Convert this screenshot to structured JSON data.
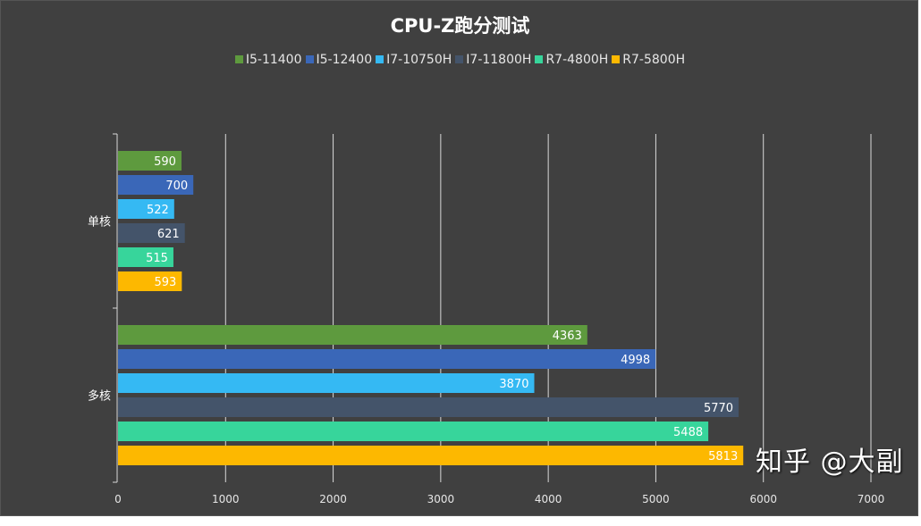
{
  "chart_data": {
    "type": "bar",
    "orientation": "horizontal",
    "title": "CPU-Z跑分测试",
    "categories": [
      "单核",
      "多核"
    ],
    "series": [
      {
        "name": "I5-11400",
        "color": "#5e9a3e",
        "values": [
          590,
          4363
        ]
      },
      {
        "name": "I5-12400",
        "color": "#3a67b8",
        "values": [
          700,
          4998
        ]
      },
      {
        "name": "I7-10750H",
        "color": "#35b9f3",
        "values": [
          522,
          3870
        ]
      },
      {
        "name": "I7-11800H",
        "color": "#44546a",
        "values": [
          621,
          5770
        ]
      },
      {
        "name": "R7-4800H",
        "color": "#37d59b",
        "values": [
          515,
          5488
        ]
      },
      {
        "name": "R7-5800H",
        "color": "#fdb800",
        "values": [
          593,
          5813
        ]
      }
    ],
    "xlim": [
      0,
      7000
    ],
    "xticks": [
      "0",
      "1000",
      "2000",
      "3000",
      "4000",
      "5000",
      "6000",
      "7000"
    ],
    "grid": true,
    "legend_position": "top",
    "data_labels": true
  },
  "watermark": "知乎 @大副"
}
